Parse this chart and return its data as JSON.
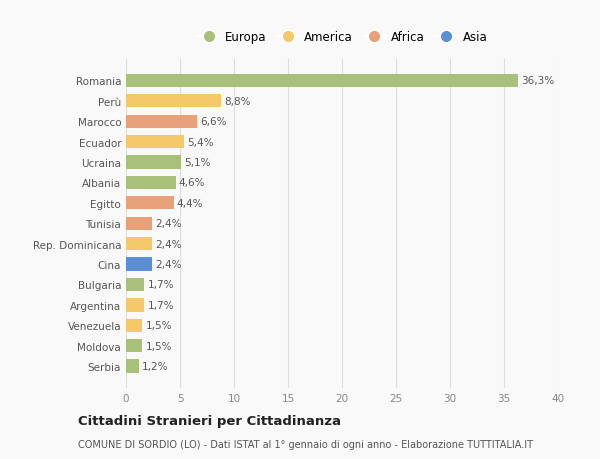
{
  "countries": [
    "Romania",
    "Perù",
    "Marocco",
    "Ecuador",
    "Ucraina",
    "Albania",
    "Egitto",
    "Tunisia",
    "Rep. Dominicana",
    "Cina",
    "Bulgaria",
    "Argentina",
    "Venezuela",
    "Moldova",
    "Serbia"
  ],
  "values": [
    36.3,
    8.8,
    6.6,
    5.4,
    5.1,
    4.6,
    4.4,
    2.4,
    2.4,
    2.4,
    1.7,
    1.7,
    1.5,
    1.5,
    1.2
  ],
  "labels": [
    "36,3%",
    "8,8%",
    "6,6%",
    "5,4%",
    "5,1%",
    "4,6%",
    "4,4%",
    "2,4%",
    "2,4%",
    "2,4%",
    "1,7%",
    "1,7%",
    "1,5%",
    "1,5%",
    "1,2%"
  ],
  "continents": [
    "Europa",
    "America",
    "Africa",
    "America",
    "Europa",
    "Europa",
    "Africa",
    "Africa",
    "America",
    "Asia",
    "Europa",
    "America",
    "America",
    "Europa",
    "Europa"
  ],
  "continent_colors": {
    "Europa": "#a8c07a",
    "America": "#f5c96a",
    "Africa": "#e8a07a",
    "Asia": "#5b8fd4"
  },
  "legend_order": [
    "Europa",
    "America",
    "Africa",
    "Asia"
  ],
  "title": "Cittadini Stranieri per Cittadinanza",
  "subtitle": "COMUNE DI SORDIO (LO) - Dati ISTAT al 1° gennaio di ogni anno - Elaborazione TUTTITALIA.IT",
  "xlim": [
    0,
    40
  ],
  "xticks": [
    0,
    5,
    10,
    15,
    20,
    25,
    30,
    35,
    40
  ],
  "background_color": "#f9f9f9",
  "grid_color": "#dddddd",
  "bar_height": 0.65
}
